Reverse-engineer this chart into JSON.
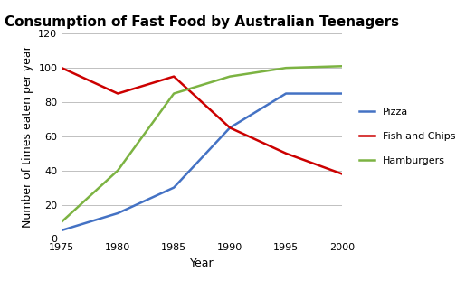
{
  "title": "Consumption of Fast Food by Australian Teenagers",
  "xlabel": "Year",
  "ylabel": "Number of times eaten per year",
  "years": [
    1975,
    1980,
    1985,
    1990,
    1995,
    2000
  ],
  "pizza": [
    5,
    15,
    30,
    65,
    85,
    85
  ],
  "fish_and_chips": [
    100,
    85,
    95,
    65,
    50,
    38
  ],
  "hamburgers": [
    10,
    40,
    85,
    95,
    100,
    101
  ],
  "pizza_color": "#4472C4",
  "fish_color": "#CC0000",
  "hamburgers_color": "#7CB342",
  "ylim": [
    0,
    120
  ],
  "yticks": [
    0,
    20,
    40,
    60,
    80,
    100,
    120
  ],
  "xticks": [
    1975,
    1980,
    1985,
    1990,
    1995,
    2000
  ],
  "legend_labels": [
    "Pizza",
    "Fish and Chips",
    "Hamburgers"
  ],
  "title_fontsize": 11,
  "axis_label_fontsize": 9,
  "tick_fontsize": 8,
  "legend_fontsize": 8,
  "line_width": 1.8,
  "background_color": "#FFFFFF",
  "grid_color": "#C0C0C0"
}
